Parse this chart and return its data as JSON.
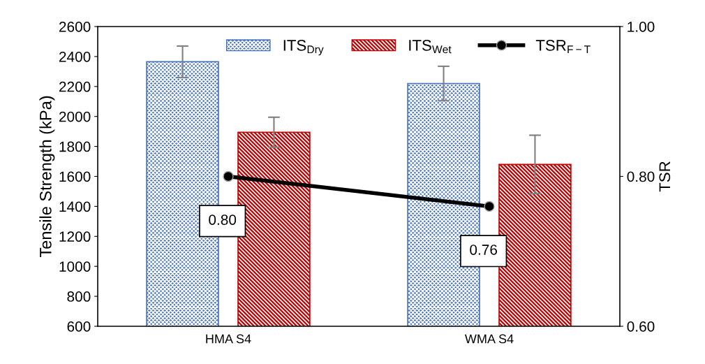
{
  "chart_data": {
    "type": "bar",
    "ylabel": "Tensile Strength (kPa)",
    "y2label": "TSR",
    "categories": [
      "HMA S4",
      "WMA S4"
    ],
    "series": [
      {
        "name": "ITS$_{Dry}$",
        "color": "#4472c4",
        "values": [
          2365,
          2220
        ],
        "errors": [
          105,
          115
        ]
      },
      {
        "name": "ITS$_{Wet}$",
        "color": "#c00000",
        "values": [
          1895,
          1680
        ],
        "errors": [
          100,
          195
        ]
      },
      {
        "name": "TSR$_{F−T}$",
        "type": "line",
        "axis": "y2",
        "color": "#000000",
        "values": [
          0.8,
          0.76
        ],
        "value_labels": [
          "0.80",
          "0.76"
        ],
        "marker": "circle"
      }
    ],
    "ylim": [
      600,
      2600
    ],
    "yticks": [
      600,
      800,
      1000,
      1200,
      1400,
      1600,
      1800,
      2000,
      2200,
      2400,
      2600
    ],
    "y2lim": [
      0.6,
      1.0
    ],
    "y2ticks": [
      {
        "value": 0.6,
        "label": "0.60"
      },
      {
        "value": 0.8,
        "label": "0.80"
      },
      {
        "value": 1.0,
        "label": "1.00"
      }
    ],
    "legend": "top",
    "grid": false
  }
}
